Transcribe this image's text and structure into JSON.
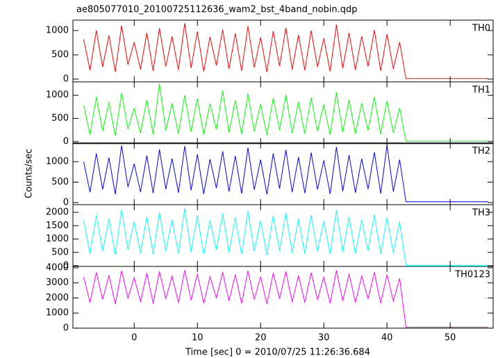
{
  "figure": {
    "title": "ae805077010_20100725112636_wam2_bst_4band_nobin.qdp",
    "xlabel": "Time [sec] 0 = 2010/07/25 11:26:36.684",
    "ylabel": "Counts/sec",
    "xlim": [
      -9.7,
      56.8
    ],
    "xticks": [
      0,
      10,
      20,
      30,
      40,
      50
    ]
  },
  "chart_data": [
    {
      "type": "line",
      "label": "TH0",
      "color": "#ff0000",
      "ylim": [
        -57,
        1214
      ],
      "yticks": [
        0,
        500,
        1000
      ],
      "x": [
        -8,
        -7,
        -6,
        -5,
        -4,
        -3,
        -2,
        -1,
        0,
        1,
        2,
        3,
        4,
        5,
        6,
        7,
        8,
        9,
        10,
        11,
        12,
        13,
        14,
        15,
        16,
        17,
        18,
        19,
        20,
        21,
        22,
        23,
        24,
        25,
        26,
        27,
        28,
        29,
        30,
        31,
        32,
        33,
        34,
        35,
        36,
        37,
        38,
        39,
        40,
        41,
        42,
        43,
        44,
        45,
        46,
        47,
        48,
        49,
        50,
        51,
        52,
        53,
        54,
        55,
        56
      ],
      "values": [
        820,
        180,
        1000,
        250,
        900,
        150,
        1100,
        300,
        760,
        200,
        950,
        170,
        1050,
        260,
        880,
        190,
        1150,
        230,
        980,
        160,
        870,
        280,
        1020,
        210,
        940,
        170,
        1090,
        240,
        860,
        150,
        990,
        270,
        1060,
        200,
        910,
        180,
        1000,
        250,
        840,
        160,
        1120,
        220,
        950,
        190,
        880,
        260,
        1010,
        170,
        930,
        210,
        760,
        10,
        10,
        10,
        10,
        10,
        10,
        10,
        10,
        10,
        10,
        10,
        10,
        10,
        10
      ]
    },
    {
      "type": "line",
      "label": "TH1",
      "color": "#00ff00",
      "ylim": [
        -45,
        1288
      ],
      "yticks": [
        0,
        500,
        1000
      ],
      "x": [
        -8,
        -7,
        -6,
        -5,
        -4,
        -3,
        -2,
        -1,
        0,
        1,
        2,
        3,
        4,
        5,
        6,
        7,
        8,
        9,
        10,
        11,
        12,
        13,
        14,
        15,
        16,
        17,
        18,
        19,
        20,
        21,
        22,
        23,
        24,
        25,
        26,
        27,
        28,
        29,
        30,
        31,
        32,
        33,
        34,
        35,
        36,
        37,
        38,
        39,
        40,
        41,
        42,
        43,
        44,
        45,
        46,
        47,
        48,
        49,
        50,
        51,
        52,
        53,
        54,
        55,
        56
      ],
      "values": [
        780,
        150,
        960,
        230,
        850,
        130,
        1050,
        270,
        720,
        180,
        900,
        160,
        1250,
        240,
        830,
        170,
        1000,
        210,
        930,
        150,
        820,
        260,
        1100,
        190,
        890,
        160,
        1030,
        220,
        810,
        140,
        940,
        250,
        1010,
        180,
        860,
        170,
        950,
        230,
        800,
        150,
        1060,
        200,
        900,
        170,
        830,
        240,
        960,
        160,
        880,
        190,
        720,
        10,
        10,
        10,
        10,
        10,
        10,
        10,
        10,
        10,
        10,
        10,
        10,
        10,
        10
      ]
    },
    {
      "type": "line",
      "label": "TH2",
      "color": "#0000ff",
      "ylim": [
        -51,
        1458
      ],
      "yticks": [
        0,
        500,
        1000
      ],
      "x": [
        -8,
        -7,
        -6,
        -5,
        -4,
        -3,
        -2,
        -1,
        0,
        1,
        2,
        3,
        4,
        5,
        6,
        7,
        8,
        9,
        10,
        11,
        12,
        13,
        14,
        15,
        16,
        17,
        18,
        19,
        20,
        21,
        22,
        23,
        24,
        25,
        26,
        27,
        28,
        29,
        30,
        31,
        32,
        33,
        34,
        35,
        36,
        37,
        38,
        39,
        40,
        41,
        42,
        43,
        44,
        45,
        46,
        47,
        48,
        49,
        50,
        51,
        52,
        53,
        54,
        55,
        56
      ],
      "values": [
        1000,
        250,
        1200,
        320,
        1100,
        200,
        1400,
        380,
        950,
        260,
        1150,
        230,
        1300,
        330,
        1080,
        240,
        1380,
        300,
        1180,
        210,
        1060,
        350,
        1250,
        270,
        1140,
        220,
        1340,
        310,
        1050,
        200,
        1200,
        340,
        1290,
        260,
        1110,
        230,
        1220,
        320,
        1030,
        210,
        1360,
        280,
        1160,
        240,
        1070,
        330,
        1230,
        220,
        1400,
        270,
        1050,
        20,
        20,
        20,
        20,
        20,
        20,
        20,
        20,
        20,
        20,
        20,
        20,
        20,
        20
      ]
    },
    {
      "type": "line",
      "label": "TH3",
      "color": "#00ffff",
      "ylim": [
        -26,
        2286
      ],
      "yticks": [
        0,
        500,
        1000,
        1500,
        2000
      ],
      "x": [
        -8,
        -7,
        -6,
        -5,
        -4,
        -3,
        -2,
        -1,
        0,
        1,
        2,
        3,
        4,
        5,
        6,
        7,
        8,
        9,
        10,
        11,
        12,
        13,
        14,
        15,
        16,
        17,
        18,
        19,
        20,
        21,
        22,
        23,
        24,
        25,
        26,
        27,
        28,
        29,
        30,
        31,
        32,
        33,
        34,
        35,
        36,
        37,
        38,
        39,
        40,
        41,
        42,
        43,
        44,
        45,
        46,
        47,
        48,
        49,
        50,
        51,
        52,
        53,
        54,
        55,
        56
      ],
      "values": [
        1700,
        450,
        1900,
        550,
        1750,
        420,
        2100,
        600,
        1650,
        480,
        1850,
        430,
        2000,
        560,
        1720,
        460,
        2150,
        520,
        1880,
        440,
        1700,
        580,
        1950,
        500,
        1800,
        430,
        2050,
        540,
        1690,
        410,
        1870,
        570,
        1980,
        480,
        1760,
        450,
        1900,
        550,
        1680,
        430,
        2080,
        510,
        1830,
        460,
        1720,
        560,
        1920,
        440,
        1800,
        490,
        1650,
        20,
        20,
        20,
        20,
        20,
        20,
        20,
        20,
        20,
        20,
        20,
        20,
        20,
        20
      ]
    },
    {
      "type": "line",
      "label": "TH0123",
      "color": "#ff00ff",
      "ylim": [
        -5,
        4092
      ],
      "yticks": [
        0,
        1000,
        2000,
        3000,
        4000
      ],
      "x": [
        -8,
        -7,
        -6,
        -5,
        -4,
        -3,
        -2,
        -1,
        0,
        1,
        2,
        3,
        4,
        5,
        6,
        7,
        8,
        9,
        10,
        11,
        12,
        13,
        14,
        15,
        16,
        17,
        18,
        19,
        20,
        21,
        22,
        23,
        24,
        25,
        26,
        27,
        28,
        29,
        30,
        31,
        32,
        33,
        34,
        35,
        36,
        37,
        38,
        39,
        40,
        41,
        42,
        43,
        44,
        45,
        46,
        47,
        48,
        49,
        50,
        51,
        52,
        53,
        54,
        55,
        56
      ],
      "values": [
        3400,
        1700,
        3700,
        1900,
        3500,
        1600,
        3800,
        2000,
        3350,
        1750,
        3650,
        1650,
        3750,
        1950,
        3450,
        1700,
        3850,
        1850,
        3600,
        1650,
        3400,
        2000,
        3700,
        1800,
        3550,
        1650,
        3800,
        1900,
        3420,
        1600,
        3650,
        1950,
        3750,
        1750,
        3480,
        1700,
        3680,
        1900,
        3380,
        1650,
        3820,
        1800,
        3600,
        1700,
        3450,
        1950,
        3700,
        1650,
        3550,
        1800,
        3300,
        60,
        60,
        60,
        60,
        60,
        60,
        60,
        60,
        60,
        60,
        60,
        60,
        60,
        60
      ]
    }
  ]
}
